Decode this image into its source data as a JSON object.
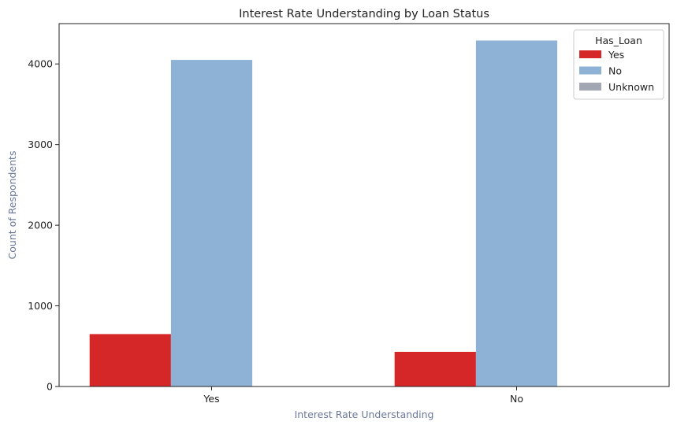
{
  "chart_data": {
    "type": "bar",
    "title": "Interest Rate Understanding by Loan Status",
    "xlabel": "Interest Rate Understanding",
    "ylabel": "Count of Respondents",
    "categories": [
      "Yes",
      "No"
    ],
    "series": [
      {
        "name": "Yes",
        "color": "#d62728",
        "values": [
          650,
          430
        ]
      },
      {
        "name": "No",
        "color": "#8db2d6",
        "values": [
          4050,
          4290
        ]
      },
      {
        "name": "Unknown",
        "color": "#a3a7b4",
        "values": [
          0,
          0
        ]
      }
    ],
    "yticks": [
      0,
      1000,
      2000,
      3000,
      4000
    ],
    "ylim": [
      0,
      4500
    ],
    "legend": {
      "title": "Has_Loan",
      "position": "top-right"
    },
    "grid": false,
    "label_color": "#6a789a"
  }
}
